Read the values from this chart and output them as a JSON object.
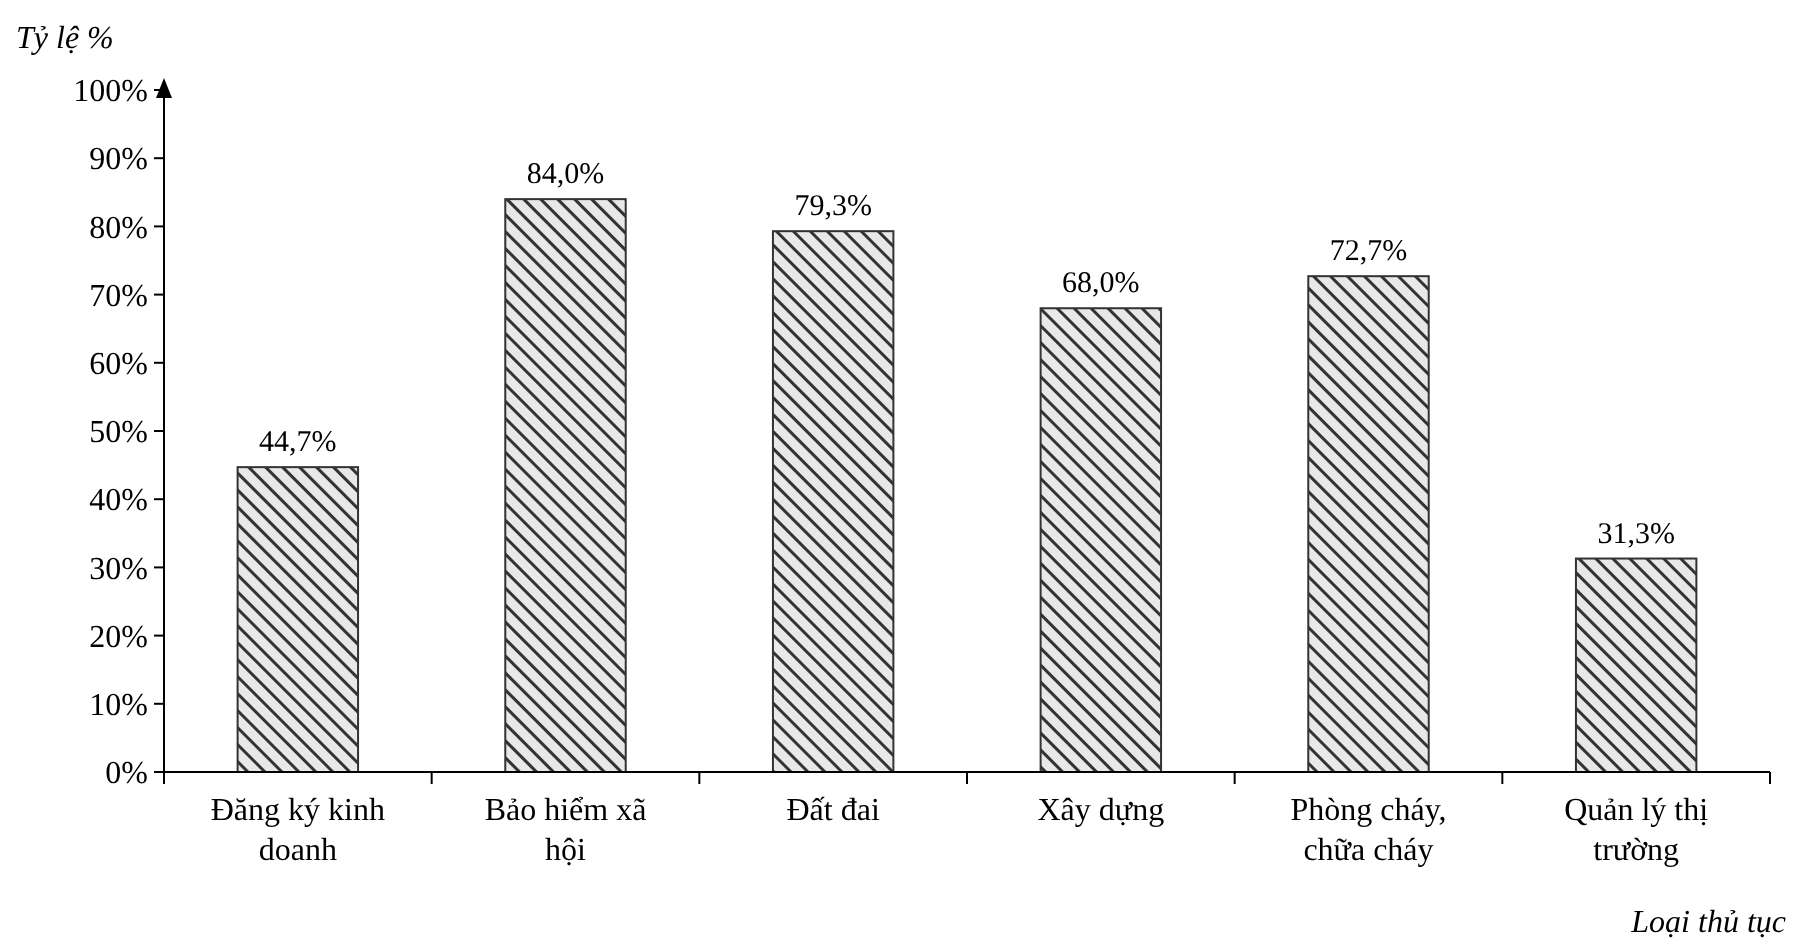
{
  "chart_data": {
    "type": "bar",
    "ylabel": "Tỷ lệ %",
    "xlabel": "Loại thủ tục",
    "categories": [
      "Đăng ký kinh doanh",
      "Bảo hiểm xã hội",
      "Đất đai",
      "Xây dựng",
      "Phòng cháy, chữa cháy",
      "Quản lý thị trường"
    ],
    "values": [
      44.7,
      84.0,
      79.3,
      68.0,
      72.7,
      31.3
    ],
    "value_labels": [
      "44,7%",
      "84,0%",
      "79,3%",
      "68,0%",
      "72,7%",
      "31,3%"
    ],
    "color": "#333333",
    "ylim": [
      0,
      100
    ],
    "yticks": [
      {
        "value": 0,
        "label": "0%"
      },
      {
        "value": 10,
        "label": "10%"
      },
      {
        "value": 20,
        "label": "20%"
      },
      {
        "value": 30,
        "label": "30%"
      },
      {
        "value": 40,
        "label": "40%"
      },
      {
        "value": 50,
        "label": "50%"
      },
      {
        "value": 60,
        "label": "60%"
      },
      {
        "value": 70,
        "label": "70%"
      },
      {
        "value": 80,
        "label": "80%"
      },
      {
        "value": 90,
        "label": "90%"
      },
      {
        "value": 100,
        "label": "100%"
      }
    ],
    "grid": false
  }
}
